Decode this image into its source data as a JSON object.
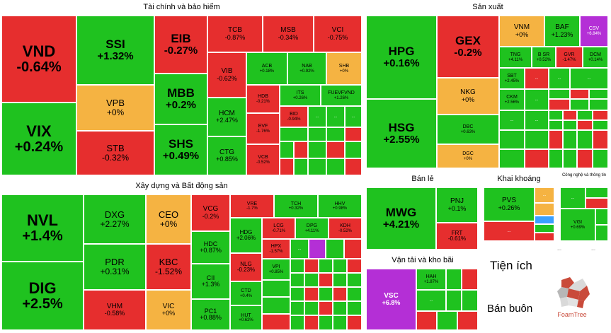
{
  "sections": {
    "finance": "Tài chính và bảo hiểm",
    "production": "Sản xuất",
    "construction": "Xây dựng và Bất động sản",
    "retail": "Bán lẻ",
    "mining": "Khai khoáng",
    "tech": "Công nghệ và thông tin",
    "transport": "Vận tải và kho bãi",
    "utilities": "Tiện ích",
    "wholesale": "Bán buôn"
  },
  "ellipsis": "...",
  "logo_text": "FoamTree",
  "tiles": {
    "VND": {
      "s": "VND",
      "v": "-0.64%"
    },
    "VIX": {
      "s": "VIX",
      "v": "+0.24%"
    },
    "SSI": {
      "s": "SSI",
      "v": "+1.32%"
    },
    "VPB": {
      "s": "VPB",
      "v": "+0%"
    },
    "STB": {
      "s": "STB",
      "v": "-0.32%"
    },
    "EIB": {
      "s": "EIB",
      "v": "-0.27%"
    },
    "MBB": {
      "s": "MBB",
      "v": "+0.2%"
    },
    "SHS": {
      "s": "SHS",
      "v": "+0.49%"
    },
    "TCB": {
      "s": "TCB",
      "v": "-0.87%"
    },
    "MSB": {
      "s": "MSB",
      "v": "-0.34%"
    },
    "VCI": {
      "s": "VCI",
      "v": "-0.75%"
    },
    "VIB": {
      "s": "VIB",
      "v": "-0.62%"
    },
    "HCM": {
      "s": "HCM",
      "v": "+2.47%"
    },
    "CTG": {
      "s": "CTG",
      "v": "+0.85%"
    },
    "ACB": {
      "s": "ACB",
      "v": "+0.18%"
    },
    "NAB": {
      "s": "NAB",
      "v": "+0.92%"
    },
    "SHB": {
      "s": "SHB",
      "v": "+0%"
    },
    "HDB": {
      "s": "HDB",
      "v": "-0.21%"
    },
    "EVF": {
      "s": "EVF",
      "v": "-1.76%"
    },
    "VCB": {
      "s": "VCB",
      "v": "-0.52%"
    },
    "ITS": {
      "s": "ITS",
      "v": "+0.26%"
    },
    "FUEVFVND": {
      "s": "FUEVFVND",
      "v": "+1.26%"
    },
    "BID": {
      "s": "BID",
      "v": "-0.94%"
    },
    "HPG": {
      "s": "HPG",
      "v": "+0.16%"
    },
    "HSG": {
      "s": "HSG",
      "v": "+2.55%"
    },
    "GEX": {
      "s": "GEX",
      "v": "-0.2%"
    },
    "NKG": {
      "s": "NKG",
      "v": "+0%"
    },
    "DBC": {
      "s": "DBC",
      "v": "+0.63%"
    },
    "DGC": {
      "s": "DGC",
      "v": "+0%"
    },
    "VNM": {
      "s": "VNM",
      "v": "+0%"
    },
    "BAF": {
      "s": "BAF",
      "v": "+1.23%"
    },
    "CSV": {
      "s": "CSV",
      "v": "+6.84%"
    },
    "TNG": {
      "s": "TNG",
      "v": "+4.11%"
    },
    "BSR": {
      "s": "B SR",
      "v": "+0.52%"
    },
    "GVR": {
      "s": "GVR",
      "v": "-1.47%"
    },
    "DCM": {
      "s": "DCM",
      "v": "+0.14%"
    },
    "SBT": {
      "s": "SBT",
      "v": "+2.45%"
    },
    "CKM": {
      "s": "CKM",
      "v": "+2.56%"
    },
    "NVL": {
      "s": "NVL",
      "v": "+1.4%"
    },
    "DIG": {
      "s": "DIG",
      "v": "+2.5%"
    },
    "DXG": {
      "s": "DXG",
      "v": "+2.27%"
    },
    "PDR": {
      "s": "PDR",
      "v": "+0.31%"
    },
    "VHM": {
      "s": "VHM",
      "v": "-0.58%"
    },
    "CEO": {
      "s": "CEO",
      "v": "+0%"
    },
    "KBC": {
      "s": "KBC",
      "v": "-1.52%"
    },
    "VIC": {
      "s": "VIC",
      "v": "+0%"
    },
    "VCG": {
      "s": "VCG",
      "v": "-0.2%"
    },
    "HDC": {
      "s": "HDC",
      "v": "+0.87%"
    },
    "CII": {
      "s": "CII",
      "v": "+1.3%"
    },
    "PC1": {
      "s": "PC1",
      "v": "+0.88%"
    },
    "VRE": {
      "s": "VRE",
      "v": "-1.7%"
    },
    "TCH": {
      "s": "TCH",
      "v": "+0.32%"
    },
    "HHV": {
      "s": "HHV",
      "v": "+0.98%"
    },
    "HDG": {
      "s": "HDG",
      "v": "+2.06%"
    },
    "NLG": {
      "s": "NLG",
      "v": "-0.23%"
    },
    "CTD": {
      "s": "CTD",
      "v": "+0.4%"
    },
    "HUT": {
      "s": "HUT",
      "v": "+0.62%"
    },
    "LCG": {
      "s": "LCG",
      "v": "-0.71%"
    },
    "DPG": {
      "s": "DPG",
      "v": "+4.11%"
    },
    "KDH": {
      "s": "KDH",
      "v": "-0.52%"
    },
    "HPX": {
      "s": "HPX",
      "v": "-1.57%"
    },
    "VPI": {
      "s": "VPI",
      "v": "+0.85%"
    },
    "MWG": {
      "s": "MWG",
      "v": "+4.21%"
    },
    "PNJ": {
      "s": "PNJ",
      "v": "+0.1%"
    },
    "FRT": {
      "s": "FRT",
      "v": "-0.61%"
    },
    "PVS": {
      "s": "PVS",
      "v": "+0.26%"
    },
    "VGI": {
      "s": "VGI",
      "v": "+0.69%"
    },
    "VSC": {
      "s": "VSC",
      "v": "+6.8%"
    },
    "HAH": {
      "s": "HAH",
      "v": "+1.87%"
    }
  }
}
